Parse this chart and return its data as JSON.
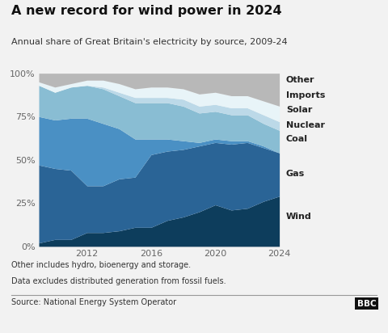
{
  "title": "A new record for wind power in 2024",
  "subtitle": "Annual share of Great Britain's electricity by source, 2009-24",
  "years": [
    2009,
    2010,
    2011,
    2012,
    2013,
    2014,
    2015,
    2016,
    2017,
    2018,
    2019,
    2020,
    2021,
    2022,
    2023,
    2024
  ],
  "sources": [
    "Wind",
    "Gas",
    "Coal",
    "Nuclear",
    "Solar",
    "Imports",
    "Other"
  ],
  "colors": [
    "#0d3d5c",
    "#2a6496",
    "#4a90c4",
    "#89bdd3",
    "#bcd9e8",
    "#e8f4f8",
    "#b8b8b8"
  ],
  "data": {
    "Wind": [
      2,
      4,
      4,
      8,
      8,
      9,
      11,
      11,
      15,
      17,
      20,
      24,
      21,
      22,
      26,
      29
    ],
    "Gas": [
      45,
      41,
      40,
      27,
      27,
      30,
      29,
      42,
      40,
      39,
      38,
      36,
      38,
      38,
      31,
      25
    ],
    "Coal": [
      28,
      28,
      30,
      39,
      36,
      29,
      22,
      9,
      7,
      5,
      2,
      2,
      2,
      1,
      1,
      0
    ],
    "Nuclear": [
      18,
      16,
      18,
      19,
      20,
      19,
      21,
      21,
      21,
      20,
      17,
      16,
      15,
      15,
      13,
      13
    ],
    "Solar": [
      0,
      0,
      0,
      0,
      1,
      2,
      3,
      3,
      3,
      4,
      4,
      4,
      4,
      4,
      5,
      5
    ],
    "Imports": [
      2,
      3,
      2,
      3,
      4,
      5,
      5,
      6,
      6,
      6,
      7,
      7,
      7,
      7,
      8,
      9
    ],
    "Other": [
      5,
      8,
      6,
      4,
      4,
      6,
      9,
      8,
      8,
      9,
      12,
      11,
      13,
      13,
      16,
      19
    ]
  },
  "label_y_positions": {
    "Other": 96,
    "Imports": 87,
    "Solar": 79,
    "Nuclear": 70,
    "Coal": 62,
    "Gas": 42,
    "Wind": 17
  },
  "footnote1": "Other includes hydro, bioenergy and storage.",
  "footnote2": "Data excludes distributed generation from fossil fuels.",
  "source": "Source: National Energy System Operator",
  "ylim": [
    0,
    100
  ],
  "yticks": [
    0,
    25,
    50,
    75,
    100
  ],
  "ytick_labels": [
    "0%",
    "25%",
    "50%",
    "75%",
    "100%"
  ],
  "bg_color": "#f2f2f2"
}
